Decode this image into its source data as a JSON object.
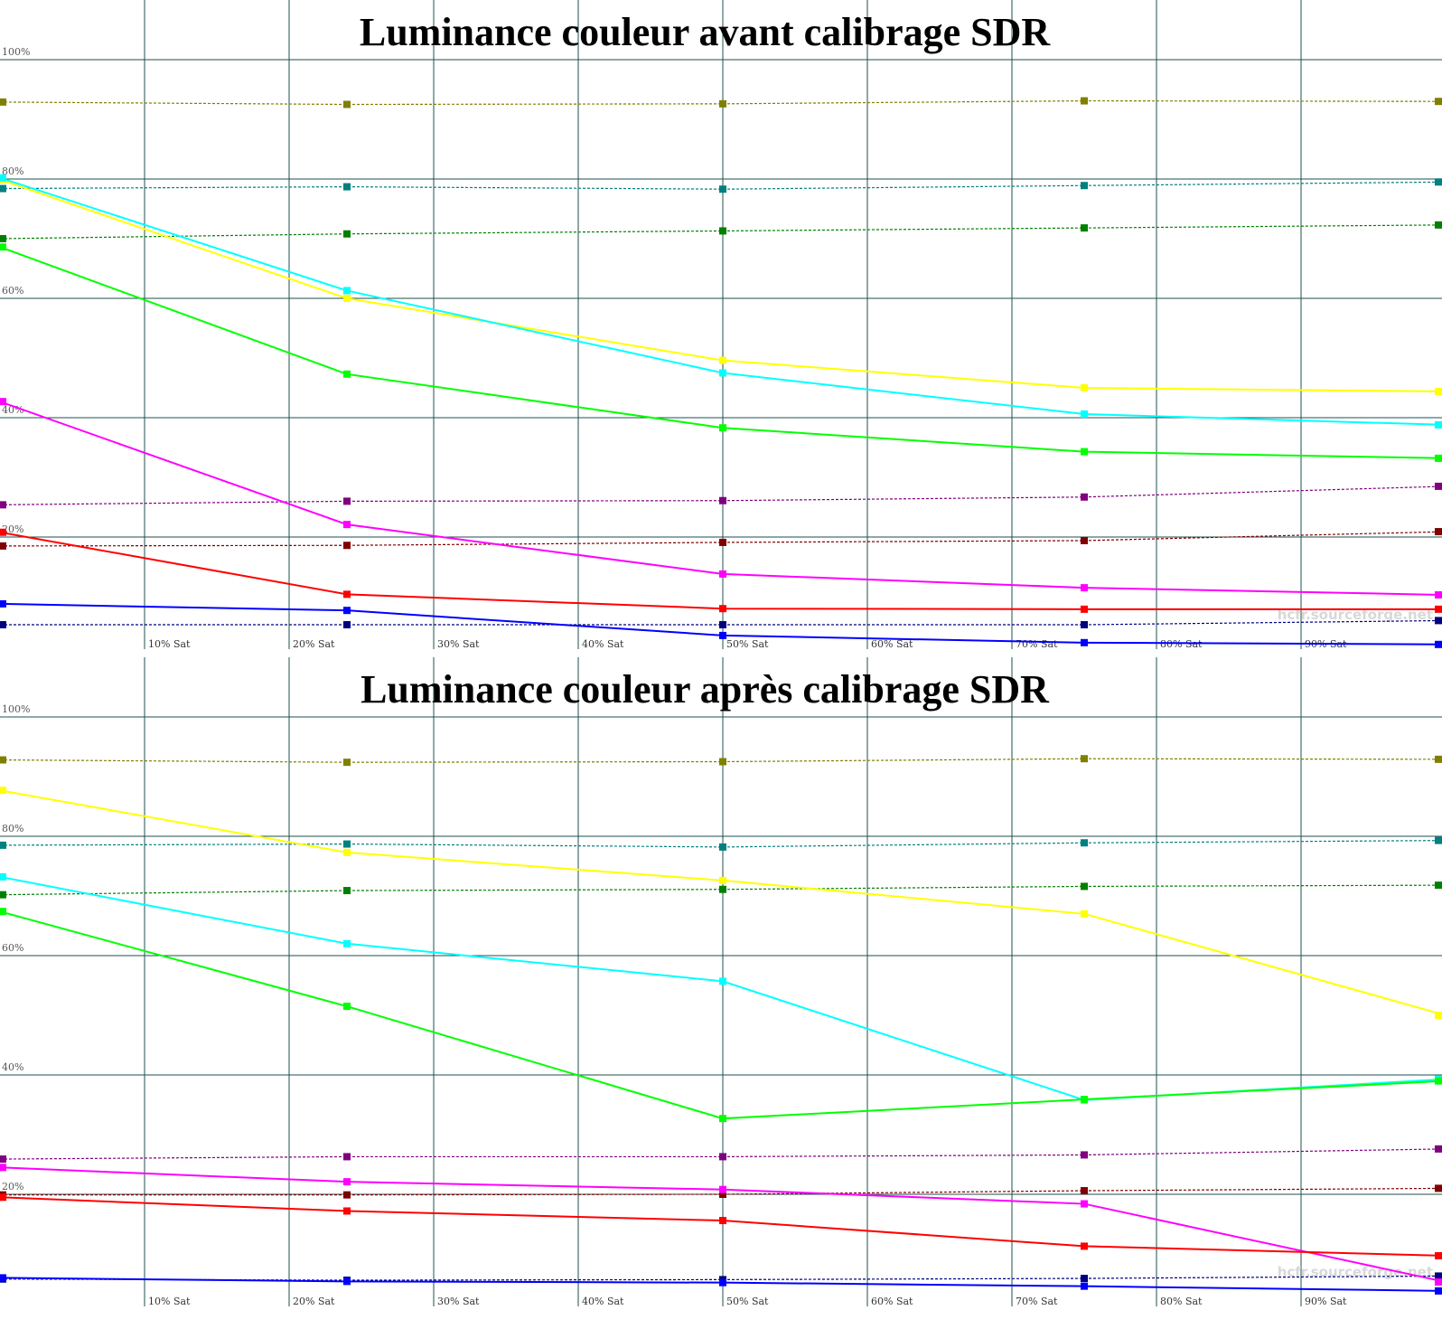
{
  "chart_data": [
    {
      "type": "line",
      "title": "Luminance couleur avant calibrage SDR",
      "x": [
        0,
        24,
        50,
        75,
        100
      ],
      "xlim": [
        0,
        100
      ],
      "ylim": [
        0,
        100
      ],
      "y_ticks": [
        100,
        80,
        60,
        40,
        20
      ],
      "y_tick_labels": [
        "100%",
        "80%",
        "60%",
        "40%",
        "20%"
      ],
      "x_ticks": [
        10,
        20,
        30,
        40,
        50,
        60,
        70,
        80,
        90
      ],
      "x_tick_labels": [
        "10% Sat",
        "20% Sat",
        "30% Sat",
        "40% Sat",
        "50% Sat",
        "60% Sat",
        "70% Sat",
        "80% Sat",
        "90% Sat"
      ],
      "grid": true,
      "watermark": "hcfr.sourceforge.net",
      "series": [
        {
          "kind": "reference",
          "color": "#808000",
          "values": [
            92.9,
            92.5,
            92.6,
            93.1,
            93.0
          ]
        },
        {
          "kind": "reference",
          "color": "#008080",
          "values": [
            78.4,
            78.7,
            78.3,
            78.9,
            79.5
          ]
        },
        {
          "kind": "reference",
          "color": "#008000",
          "values": [
            70.0,
            70.8,
            71.3,
            71.8,
            72.3
          ]
        },
        {
          "kind": "reference",
          "color": "#800080",
          "values": [
            25.4,
            26.0,
            26.1,
            26.7,
            28.5
          ]
        },
        {
          "kind": "reference",
          "color": "#800000",
          "values": [
            18.5,
            18.6,
            19.1,
            19.4,
            20.9
          ]
        },
        {
          "kind": "reference",
          "color": "#000080",
          "values": [
            5.3,
            5.3,
            5.3,
            5.3,
            6.0
          ]
        },
        {
          "kind": "measured",
          "color": "#ffff00",
          "values": [
            79.9,
            60.0,
            49.6,
            45.0,
            44.4
          ]
        },
        {
          "kind": "measured",
          "color": "#00ffff",
          "values": [
            80.2,
            61.3,
            47.5,
            40.6,
            38.8
          ]
        },
        {
          "kind": "measured",
          "color": "#00ff00",
          "values": [
            68.6,
            47.3,
            38.3,
            34.3,
            33.2
          ]
        },
        {
          "kind": "measured",
          "color": "#ff00ff",
          "values": [
            42.7,
            22.1,
            13.8,
            11.5,
            10.3
          ]
        },
        {
          "kind": "measured",
          "color": "#ff0000",
          "values": [
            20.8,
            10.4,
            8.0,
            7.9,
            7.9
          ]
        },
        {
          "kind": "measured",
          "color": "#0000ff",
          "values": [
            8.8,
            7.7,
            3.5,
            2.3,
            2.0
          ]
        }
      ]
    },
    {
      "type": "line",
      "title": "Luminance couleur après calibrage SDR",
      "x": [
        0,
        24,
        50,
        75,
        100
      ],
      "xlim": [
        0,
        100
      ],
      "ylim": [
        0,
        100
      ],
      "y_ticks": [
        100,
        80,
        60,
        40,
        20
      ],
      "y_tick_labels": [
        "100%",
        "80%",
        "60%",
        "40%",
        "20%"
      ],
      "x_ticks": [
        10,
        20,
        30,
        40,
        50,
        60,
        70,
        80,
        90
      ],
      "x_tick_labels": [
        "10% Sat",
        "20% Sat",
        "30% Sat",
        "40% Sat",
        "50% Sat",
        "60% Sat",
        "70% Sat",
        "80% Sat",
        "90% Sat"
      ],
      "grid": true,
      "watermark": "hcfr.sourceforge.net",
      "series": [
        {
          "kind": "reference",
          "color": "#808000",
          "values": [
            92.8,
            92.4,
            92.5,
            93.0,
            92.9
          ]
        },
        {
          "kind": "reference",
          "color": "#008080",
          "values": [
            78.5,
            78.7,
            78.2,
            78.9,
            79.3
          ]
        },
        {
          "kind": "reference",
          "color": "#008000",
          "values": [
            70.2,
            70.9,
            71.1,
            71.6,
            71.8
          ]
        },
        {
          "kind": "reference",
          "color": "#800080",
          "values": [
            25.9,
            26.3,
            26.3,
            26.6,
            27.6
          ]
        },
        {
          "kind": "reference",
          "color": "#800000",
          "values": [
            19.9,
            19.9,
            20.0,
            20.6,
            21.0
          ]
        },
        {
          "kind": "reference",
          "color": "#000080",
          "values": [
            5.8,
            5.6,
            5.7,
            5.9,
            6.3
          ]
        },
        {
          "kind": "measured",
          "color": "#ffff00",
          "values": [
            87.7,
            77.3,
            72.6,
            67.0,
            50.0
          ]
        },
        {
          "kind": "measured",
          "color": "#00ffff",
          "values": [
            73.2,
            62.0,
            55.7,
            35.8,
            39.3
          ]
        },
        {
          "kind": "measured",
          "color": "#00ff00",
          "values": [
            67.4,
            51.5,
            32.7,
            35.9,
            39.0
          ]
        },
        {
          "kind": "measured",
          "color": "#ff00ff",
          "values": [
            24.5,
            22.1,
            20.8,
            18.4,
            5.3
          ]
        },
        {
          "kind": "measured",
          "color": "#ff0000",
          "values": [
            19.5,
            17.2,
            15.6,
            11.3,
            9.7
          ]
        },
        {
          "kind": "measured",
          "color": "#0000ff",
          "values": [
            6.0,
            5.4,
            5.2,
            4.6,
            3.8
          ]
        }
      ]
    }
  ]
}
